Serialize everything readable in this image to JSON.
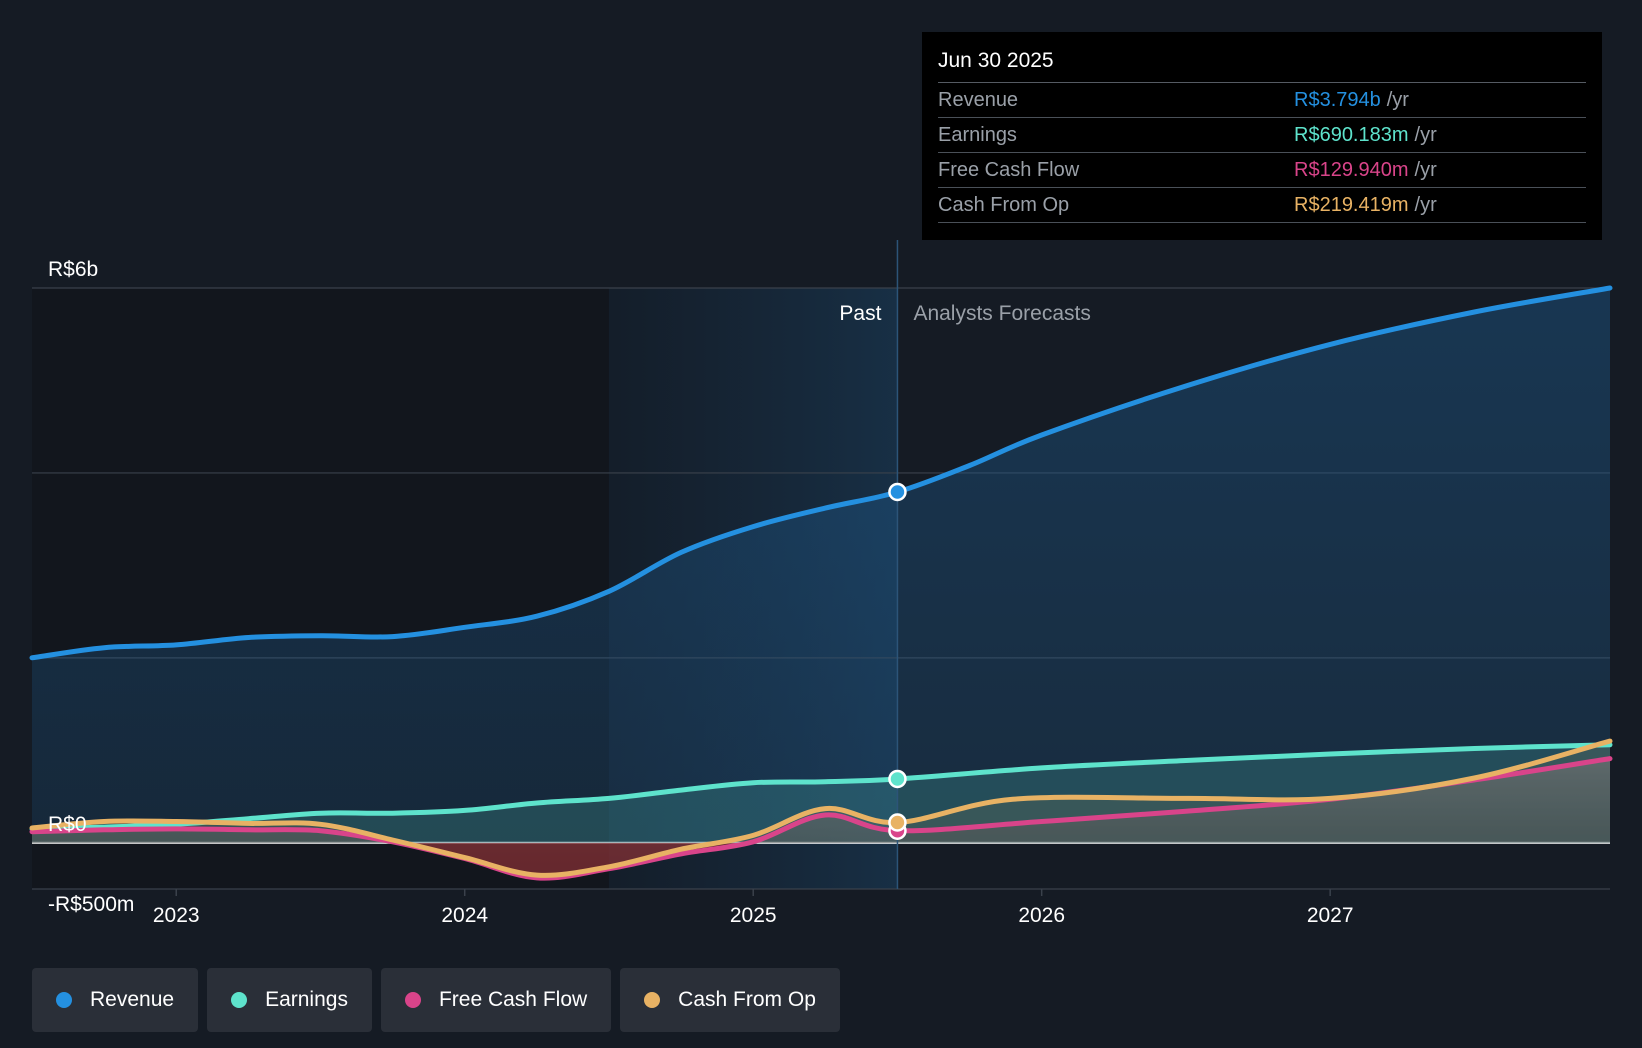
{
  "chart_data": {
    "type": "area",
    "currency_prefix": "R$",
    "y_axis": {
      "min": -500,
      "max": 6000,
      "unit": "m",
      "tick_labels": [
        {
          "value": 6000,
          "label": "R$6b"
        },
        {
          "value": 0,
          "label": "R$0"
        },
        {
          "value": -500,
          "label": "-R$500m"
        }
      ],
      "gridlines": [
        6000,
        4000,
        2000,
        0,
        -500
      ]
    },
    "x_axis": {
      "min": 2022.5,
      "max": 2027.97,
      "ticks": [
        {
          "value": 2023,
          "label": "2023"
        },
        {
          "value": 2024,
          "label": "2024"
        },
        {
          "value": 2025,
          "label": "2025"
        },
        {
          "value": 2026,
          "label": "2026"
        },
        {
          "value": 2027,
          "label": "2027"
        }
      ]
    },
    "past_band_start": 2024.5,
    "divider_x": 2025.5,
    "past_label": "Past",
    "forecast_label": "Analysts Forecasts",
    "series": [
      {
        "name": "Revenue",
        "color": "#2490e0",
        "points": [
          [
            2022.5,
            2000
          ],
          [
            2022.75,
            2110
          ],
          [
            2023.0,
            2140
          ],
          [
            2023.25,
            2220
          ],
          [
            2023.5,
            2240
          ],
          [
            2023.75,
            2230
          ],
          [
            2024.0,
            2330
          ],
          [
            2024.25,
            2450
          ],
          [
            2024.5,
            2720
          ],
          [
            2024.75,
            3140
          ],
          [
            2025.0,
            3420
          ],
          [
            2025.25,
            3620
          ],
          [
            2025.5,
            3794
          ]
        ],
        "forecast": [
          [
            2025.5,
            3794
          ],
          [
            2025.75,
            4080
          ],
          [
            2026.0,
            4410
          ],
          [
            2026.5,
            4940
          ],
          [
            2027.0,
            5390
          ],
          [
            2027.5,
            5740
          ],
          [
            2027.97,
            6000
          ]
        ]
      },
      {
        "name": "Earnings",
        "color": "#5ee3cc",
        "points": [
          [
            2022.5,
            150
          ],
          [
            2022.75,
            170
          ],
          [
            2023.0,
            200
          ],
          [
            2023.25,
            260
          ],
          [
            2023.5,
            320
          ],
          [
            2023.75,
            320
          ],
          [
            2024.0,
            350
          ],
          [
            2024.25,
            430
          ],
          [
            2024.5,
            480
          ],
          [
            2024.75,
            570
          ],
          [
            2025.0,
            650
          ],
          [
            2025.25,
            660
          ],
          [
            2025.5,
            690
          ]
        ],
        "forecast": [
          [
            2025.5,
            690
          ],
          [
            2026.0,
            810
          ],
          [
            2026.5,
            890
          ],
          [
            2027.0,
            960
          ],
          [
            2027.5,
            1020
          ],
          [
            2027.97,
            1060
          ]
        ]
      },
      {
        "name": "Free Cash Flow",
        "color": "#d9448a",
        "points": [
          [
            2022.5,
            120
          ],
          [
            2022.75,
            140
          ],
          [
            2023.0,
            150
          ],
          [
            2023.25,
            140
          ],
          [
            2023.5,
            130
          ],
          [
            2023.75,
            10
          ],
          [
            2024.0,
            -170
          ],
          [
            2024.25,
            -380
          ],
          [
            2024.5,
            -280
          ],
          [
            2024.75,
            -120
          ],
          [
            2025.0,
            10
          ],
          [
            2025.25,
            300
          ],
          [
            2025.5,
            130
          ]
        ],
        "forecast": [
          [
            2025.5,
            130
          ],
          [
            2026.0,
            230
          ],
          [
            2026.5,
            340
          ],
          [
            2027.0,
            470
          ],
          [
            2027.5,
            680
          ],
          [
            2027.97,
            910
          ]
        ]
      },
      {
        "name": "Cash From Op",
        "color": "#e8b264",
        "points": [
          [
            2022.5,
            160
          ],
          [
            2022.75,
            230
          ],
          [
            2023.0,
            230
          ],
          [
            2023.25,
            210
          ],
          [
            2023.5,
            200
          ],
          [
            2023.75,
            30
          ],
          [
            2024.0,
            -160
          ],
          [
            2024.25,
            -350
          ],
          [
            2024.5,
            -260
          ],
          [
            2024.75,
            -70
          ],
          [
            2025.0,
            80
          ],
          [
            2025.25,
            370
          ],
          [
            2025.5,
            219
          ]
        ],
        "forecast": [
          [
            2025.5,
            219
          ],
          [
            2025.9,
            470
          ],
          [
            2026.5,
            480
          ],
          [
            2027.0,
            480
          ],
          [
            2027.5,
            700
          ],
          [
            2027.97,
            1100
          ]
        ]
      }
    ]
  },
  "tooltip": {
    "date": "Jun 30 2025",
    "rows": [
      {
        "label": "Revenue",
        "value": "R$3.794b",
        "unit": "/yr",
        "color": "#2490e0"
      },
      {
        "label": "Earnings",
        "value": "R$690.183m",
        "unit": "/yr",
        "color": "#5ee3cc"
      },
      {
        "label": "Free Cash Flow",
        "value": "R$129.940m",
        "unit": "/yr",
        "color": "#d9448a"
      },
      {
        "label": "Cash From Op",
        "value": "R$219.419m",
        "unit": "/yr",
        "color": "#e8b264"
      }
    ]
  },
  "legend": [
    {
      "label": "Revenue",
      "color": "#2490e0"
    },
    {
      "label": "Earnings",
      "color": "#5ee3cc"
    },
    {
      "label": "Free Cash Flow",
      "color": "#d9448a"
    },
    {
      "label": "Cash From Op",
      "color": "#e8b264"
    }
  ]
}
